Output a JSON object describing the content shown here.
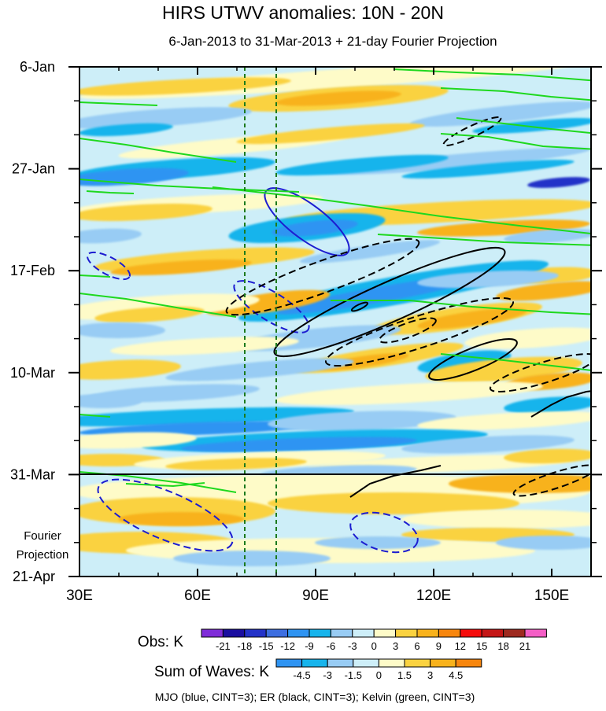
{
  "chart_data": {
    "type": "heatmap",
    "title": "HIRS UTWV anomalies: 10N - 20N",
    "subtitle": "6-Jan-2013 to 31-Mar-2013 + 21-day Fourier Projection",
    "xlabel": "",
    "ylabel": "",
    "x_range": [
      30,
      160
    ],
    "x_units": "degrees east longitude",
    "x_ticks": [
      {
        "value": 30,
        "label": "30E"
      },
      {
        "value": 60,
        "label": "60E"
      },
      {
        "value": 90,
        "label": "90E"
      },
      {
        "value": 120,
        "label": "120E"
      },
      {
        "value": 150,
        "label": "150E"
      }
    ],
    "y_range_days": [
      0,
      105
    ],
    "y_units": "days since 6-Jan-2013",
    "y_ticks": [
      {
        "value": 0,
        "label": "6-Jan"
      },
      {
        "value": 21,
        "label": "27-Jan"
      },
      {
        "value": 42,
        "label": "17-Feb"
      },
      {
        "value": 63,
        "label": "10-Mar"
      },
      {
        "value": 84,
        "label": "31-Mar"
      },
      {
        "value": 105,
        "label": "21-Apr"
      }
    ],
    "projection_label": [
      "Fourier",
      "Projection"
    ],
    "projection_start_day": 84,
    "reference_lines_lon": [
      72,
      80
    ],
    "obs_colorbar": {
      "label": "Obs: K",
      "levels": [
        -21,
        -18,
        -15,
        -12,
        -9,
        -6,
        -3,
        0,
        3,
        6,
        9,
        12,
        15,
        18,
        21
      ],
      "colors": [
        "#7f2cd8",
        "#1a0ea0",
        "#2332c8",
        "#3d6ee0",
        "#2f94f2",
        "#17b4ec",
        "#98ccf4",
        "#cdeef8",
        "#fefbc8",
        "#fad240",
        "#f8b21c",
        "#f7860e",
        "#f60c0c",
        "#c41616",
        "#9e2a20",
        "#f45fc6"
      ]
    },
    "waves_colorbar": {
      "label": "Sum of Waves: K",
      "levels": [
        -4.5,
        -3,
        -1.5,
        0,
        1.5,
        3,
        4.5
      ],
      "colors": [
        "#2f94f2",
        "#17b4ec",
        "#98ccf4",
        "#cdeef8",
        "#fefbc8",
        "#fad240",
        "#f8b21c",
        "#f7860e"
      ]
    },
    "contour_legend": "MJO (blue, CINT=3); ER (black, CINT=3); Kelvin (green, CINT=3)",
    "series": [
      {
        "name": "MJO",
        "color": "#1c1cd0",
        "cint": 3
      },
      {
        "name": "ER",
        "color": "#000000",
        "cint": 3
      },
      {
        "name": "Kelvin",
        "color": "#1ed81e",
        "cint": 3
      }
    ],
    "field_colors": {
      "pale_blue": "#cdeef8",
      "light_blue": "#98ccf4",
      "mid_blue": "#17b4ec",
      "deep_blue": "#2f94f2",
      "dark_blue": "#2332c8",
      "pale_yellow": "#fefbc8",
      "gold": "#fad240",
      "orange": "#f8b21c"
    }
  }
}
